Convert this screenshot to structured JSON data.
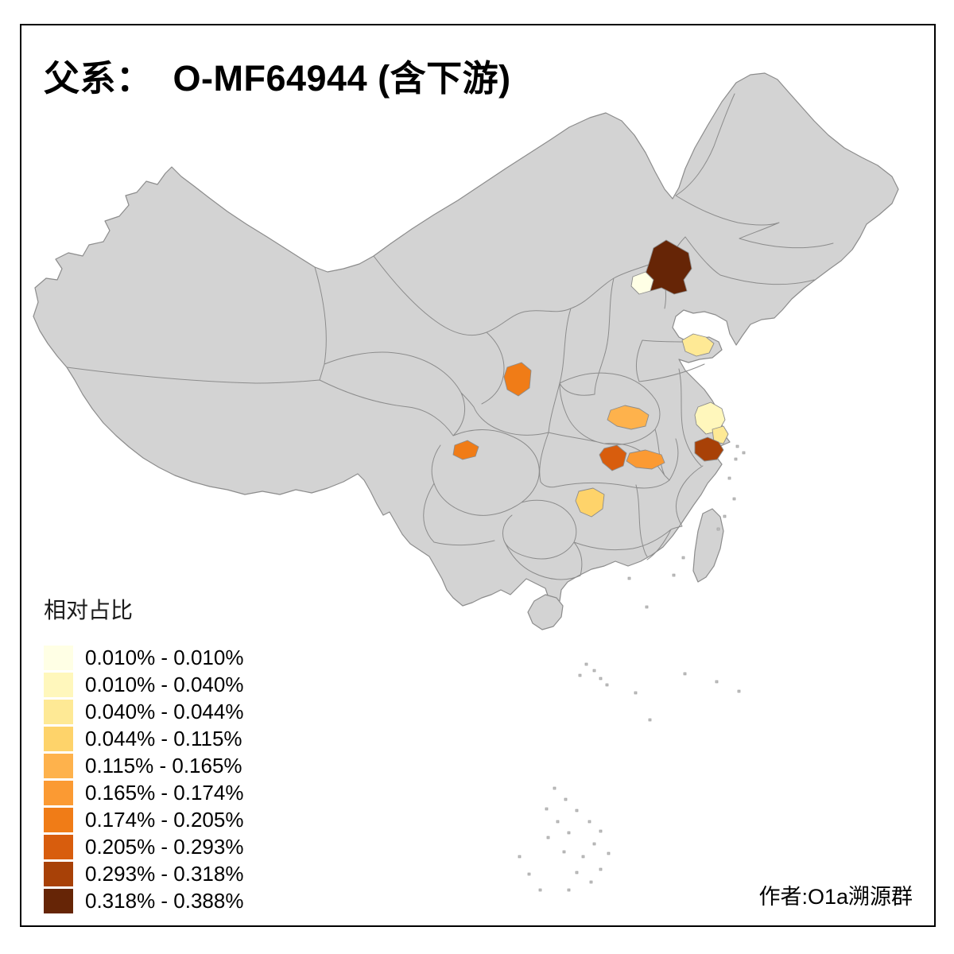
{
  "title": "父系：  O-MF64944 (含下游)",
  "legend": {
    "title": "相对占比",
    "entries": [
      {
        "label": "0.010% - 0.010%",
        "color": "#FFFFE5"
      },
      {
        "label": "0.010% - 0.040%",
        "color": "#FFF7BC"
      },
      {
        "label": "0.040% - 0.044%",
        "color": "#FEE995"
      },
      {
        "label": "0.044% - 0.115%",
        "color": "#FED36A"
      },
      {
        "label": "0.115% - 0.165%",
        "color": "#FEB24C"
      },
      {
        "label": "0.165% - 0.174%",
        "color": "#FB9A33"
      },
      {
        "label": "0.174% - 0.205%",
        "color": "#F07C17"
      },
      {
        "label": "0.205% - 0.293%",
        "color": "#D85D0D"
      },
      {
        "label": "0.293% - 0.318%",
        "color": "#A84107"
      },
      {
        "label": "0.318% - 0.388%",
        "color": "#662506"
      }
    ]
  },
  "credit": "作者:O1a溯源群",
  "map": {
    "base_fill": "#D3D3D3",
    "boundary_color": "#8C8C8C",
    "frame_color": "#000000",
    "highlights": [
      {
        "id": "r-beijing",
        "class_index": 0
      },
      {
        "id": "r-jiangsu-south",
        "class_index": 1
      },
      {
        "id": "r-shandong-tip",
        "class_index": 2
      },
      {
        "id": "r-jiangsu-coast",
        "class_index": 2
      },
      {
        "id": "r-hunan",
        "class_index": 3
      },
      {
        "id": "r-henan",
        "class_index": 4
      },
      {
        "id": "r-hubei-east",
        "class_index": 5
      },
      {
        "id": "r-shaanxi",
        "class_index": 6
      },
      {
        "id": "r-sichuan",
        "class_index": 6
      },
      {
        "id": "r-hubei-west",
        "class_index": 7
      },
      {
        "id": "r-shanghai",
        "class_index": 8
      },
      {
        "id": "r-hebei-ne",
        "class_index": 9
      }
    ]
  }
}
